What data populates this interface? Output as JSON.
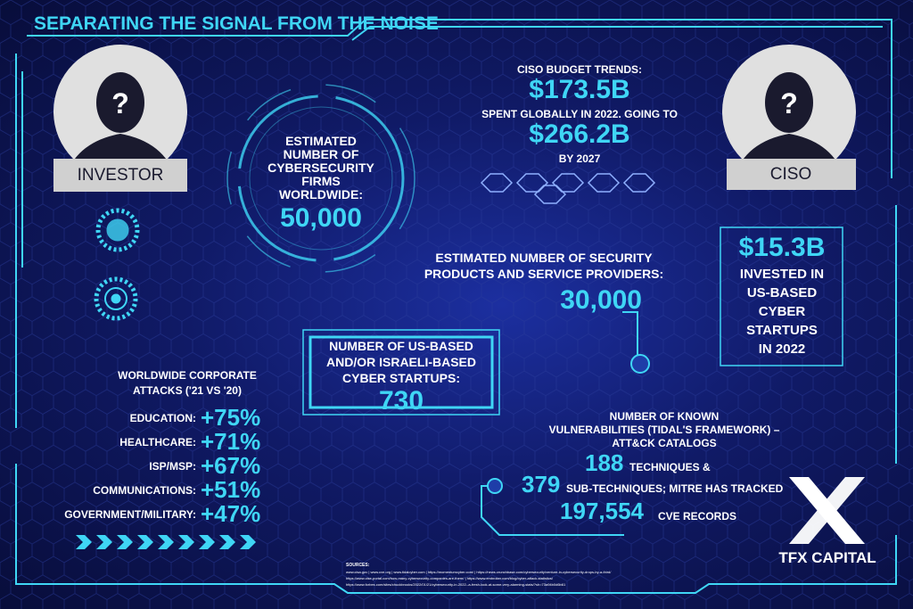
{
  "header": {
    "title": "SEPARATING THE SIGNAL FROM THE NOISE"
  },
  "investor": {
    "icon": "?",
    "label": "INVESTOR"
  },
  "ciso": {
    "icon": "?",
    "label": "CISO"
  },
  "firms": {
    "lines": [
      "ESTIMATED",
      "NUMBER OF",
      "CYBERSECURITY",
      "FIRMS",
      "WORLDWIDE:"
    ],
    "value": "50,000"
  },
  "budget": {
    "heading": "CISO BUDGET TRENDS:",
    "value_2022": "$173.5B",
    "text": "SPENT GLOBALLY IN 2022. GOING TO",
    "value_2027": "$266.2B",
    "suffix": "BY 2027"
  },
  "providers": {
    "lines": [
      "ESTIMATED NUMBER OF SECURITY",
      "PRODUCTS AND SERVICE PROVIDERS:"
    ],
    "value": "30,000"
  },
  "invested": {
    "value": "$15.3B",
    "lines": [
      "INVESTED IN",
      "US-BASED",
      "CYBER",
      "STARTUPS",
      "IN 2022"
    ]
  },
  "startups": {
    "lines": [
      "NUMBER OF US-BASED",
      "AND/OR ISRAELI-BASED",
      "CYBER STARTUPS:"
    ],
    "value": "730"
  },
  "attacks": {
    "lines": [
      "WORLDWIDE CORPORATE",
      "ATTACKS ('21 VS '20)"
    ],
    "rows": [
      {
        "label": "EDUCATION:",
        "value": "+75%"
      },
      {
        "label": "HEALTHCARE:",
        "value": "+71%"
      },
      {
        "label": "ISP/MSP:",
        "value": "+67%"
      },
      {
        "label": "COMMUNICATIONS:",
        "value": "+51%"
      },
      {
        "label": "GOVERNMENT/MILITARY:",
        "value": "+47%"
      }
    ]
  },
  "vulnerabilities": {
    "lines": [
      "NUMBER OF KNOWN",
      "VULNERABILITIES (TIDAL'S FRAMEWORK) –",
      "ATT&CK CATALOGS"
    ],
    "techniques": "188",
    "techniques_label": "TECHNIQUES &",
    "sub_techniques": "379",
    "sub_techniques_label": "SUB-TECHNIQUES;  MITRE HAS TRACKED",
    "cve": "197,554",
    "cve_label": "CVE RECORDS"
  },
  "logo": {
    "name": "TFX CAPITAL"
  },
  "sources": {
    "heading": "SOURCES:",
    "lines": [
      "www.cisa.gov | www.cve.org | www.tidalcyber.com | https://momentumcyber.com/ | https://news.crunchbase.com/cybersecurity/venture-in-cybersecurity-drops-by-a-third/",
      "https://www.cise-portal.com/how-many-cybersecurity-companies-are-there/ | https://www.embroker.com/blog/cyber-attack-statistics/",
      "https://www.forbes.com/sites/chuckbrooks/2022/01/21/cybersecurity-in-2022--a-fresh-look-at-some-very-alarming-stats/?sh=73a94b0d6b61"
    ]
  }
}
